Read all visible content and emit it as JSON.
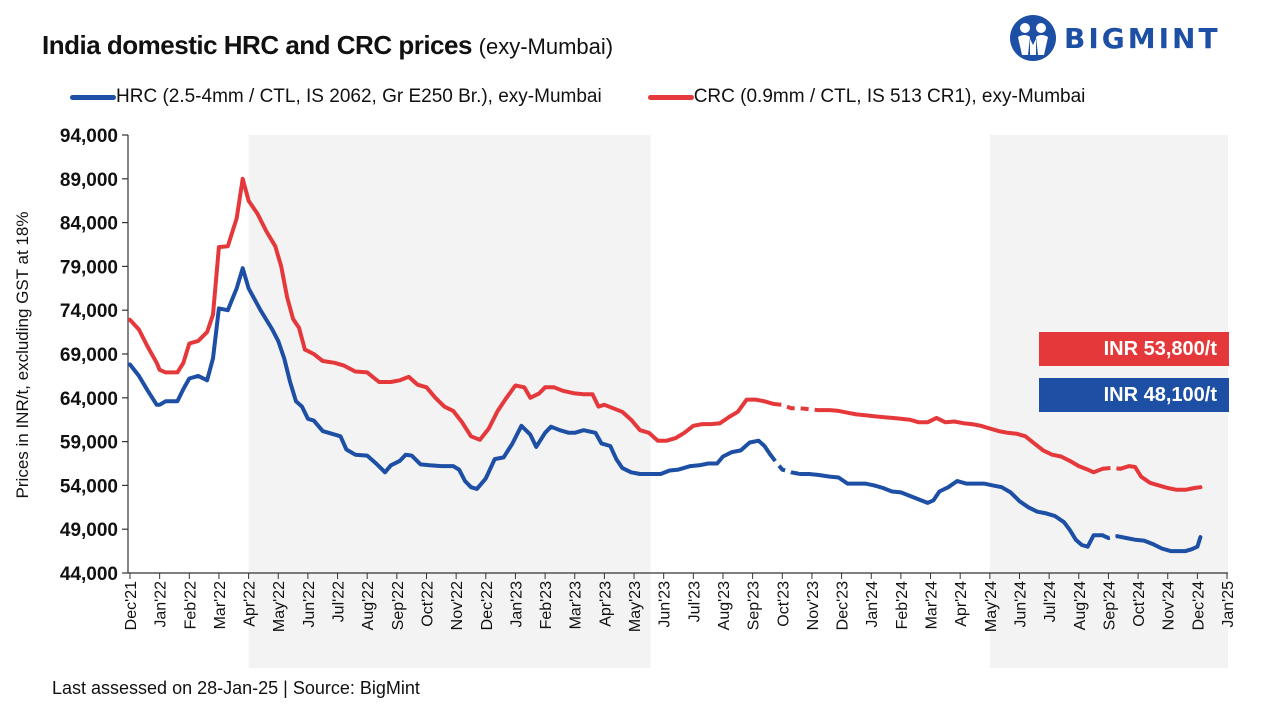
{
  "header": {
    "title": "India domestic HRC and CRC prices",
    "subtitle": "(exy-Mumbai)",
    "brand": "BIGMINT",
    "logo_icon": "bigmint-people-logo"
  },
  "footer": {
    "text": "Last assessed on 28-Jan-25  |  Source: BigMint"
  },
  "badges": {
    "crc": "INR 53,800/t",
    "hrc": "INR 48,100/t"
  },
  "colors": {
    "hrc": "#1d4fa5",
    "crc": "#e5383b",
    "shade": "#f3f3f3",
    "badge_crc": "#e5383b",
    "badge_hrc": "#1d4fa5"
  },
  "chart_data": {
    "type": "line",
    "title": "India domestic HRC and CRC prices (exy-Mumbai)",
    "ylabel": "Prices in INR/t, excluding GST at 18%",
    "xlabel": "",
    "ylim": [
      44000,
      94000
    ],
    "yticks": [
      "94,000",
      "89,000",
      "84,000",
      "79,000",
      "74,000",
      "69,000",
      "64,000",
      "59,000",
      "54,000",
      "49,000",
      "44,000"
    ],
    "xticks": [
      "Dec'21",
      "Jan'22",
      "Feb'22",
      "Mar'22",
      "Apr'22",
      "May'22",
      "Jun'22",
      "Jul'22",
      "Aug'22",
      "Sep'22",
      "Oct'22",
      "Nov'22",
      "Dec'22",
      "Jan'23",
      "Feb'23",
      "Mar'23",
      "Apr'23",
      "May'23",
      "Jun'23",
      "Jul'23",
      "Aug'23",
      "Sep'23",
      "Oct'23",
      "Nov'23",
      "Dec'23",
      "Jan'24",
      "Feb'24",
      "Mar'24",
      "Apr'24",
      "May'24",
      "Jun'24",
      "Jul'24",
      "Aug'24",
      "Sep'24",
      "Oct'24",
      "Nov'24",
      "Dec'24",
      "Jan'25"
    ],
    "legend_position": "top",
    "grid": false,
    "shaded_ranges": [
      [
        "Apr'22",
        "May'23"
      ],
      [
        "May'24",
        "Jan'25"
      ]
    ],
    "series": [
      {
        "name": "HRC (2.5-4mm / CTL, IS 2062, Gr E250 Br.), exy-Mumbai",
        "color": "#1d4fa5",
        "points": [
          [
            0,
            67800
          ],
          [
            0.3,
            66500
          ],
          [
            0.6,
            64800
          ],
          [
            0.9,
            63200
          ],
          [
            1.0,
            63200
          ],
          [
            1.2,
            63600
          ],
          [
            1.6,
            63600
          ],
          [
            1.8,
            65000
          ],
          [
            2.0,
            66200
          ],
          [
            2.3,
            66500
          ],
          [
            2.6,
            66000
          ],
          [
            2.8,
            68500
          ],
          [
            3.0,
            74200
          ],
          [
            3.3,
            74000
          ],
          [
            3.6,
            76500
          ],
          [
            3.8,
            78800
          ],
          [
            4.0,
            76500
          ],
          [
            4.4,
            74000
          ],
          [
            4.8,
            71800
          ],
          [
            5.0,
            70500
          ],
          [
            5.2,
            68500
          ],
          [
            5.4,
            65800
          ],
          [
            5.6,
            63600
          ],
          [
            5.8,
            63000
          ],
          [
            6.0,
            61600
          ],
          [
            6.2,
            61400
          ],
          [
            6.5,
            60200
          ],
          [
            6.9,
            59800
          ],
          [
            7.1,
            59600
          ],
          [
            7.3,
            58100
          ],
          [
            7.6,
            57500
          ],
          [
            8.0,
            57400
          ],
          [
            8.3,
            56500
          ],
          [
            8.6,
            55500
          ],
          [
            8.8,
            56300
          ],
          [
            9.1,
            56800
          ],
          [
            9.3,
            57500
          ],
          [
            9.5,
            57400
          ],
          [
            9.8,
            56400
          ],
          [
            10.1,
            56300
          ],
          [
            10.5,
            56200
          ],
          [
            10.9,
            56200
          ],
          [
            11.1,
            55800
          ],
          [
            11.3,
            54500
          ],
          [
            11.5,
            53800
          ],
          [
            11.7,
            53600
          ],
          [
            12.0,
            54800
          ],
          [
            12.3,
            57000
          ],
          [
            12.6,
            57200
          ],
          [
            12.9,
            58800
          ],
          [
            13.2,
            60800
          ],
          [
            13.5,
            59800
          ],
          [
            13.7,
            58400
          ],
          [
            14.0,
            60000
          ],
          [
            14.2,
            60700
          ],
          [
            14.5,
            60300
          ],
          [
            14.8,
            60000
          ],
          [
            15.0,
            60000
          ],
          [
            15.3,
            60300
          ],
          [
            15.7,
            60000
          ],
          [
            15.9,
            58800
          ],
          [
            16.2,
            58500
          ],
          [
            16.4,
            57000
          ],
          [
            16.6,
            56000
          ],
          [
            16.9,
            55500
          ],
          [
            17.2,
            55300
          ],
          [
            17.6,
            55300
          ],
          [
            17.9,
            55300
          ],
          [
            18.2,
            55700
          ],
          [
            18.5,
            55800
          ],
          [
            18.9,
            56200
          ],
          [
            19.2,
            56300
          ],
          [
            19.5,
            56500
          ],
          [
            19.8,
            56500
          ],
          [
            20.0,
            57300
          ],
          [
            20.3,
            57800
          ],
          [
            20.6,
            58000
          ],
          [
            20.9,
            58900
          ],
          [
            21.2,
            59100
          ],
          [
            21.4,
            58500
          ],
          [
            21.6,
            57500
          ],
          [
            21.8,
            56600
          ],
          [
            22.0,
            55800
          ],
          [
            22.3,
            55500
          ],
          [
            22.6,
            55300
          ],
          [
            22.9,
            55300
          ],
          [
            23.2,
            55200
          ],
          [
            23.6,
            55000
          ],
          [
            23.9,
            54900
          ],
          [
            24.2,
            54200
          ],
          [
            24.5,
            54200
          ],
          [
            24.8,
            54200
          ],
          [
            25.1,
            54000
          ],
          [
            25.4,
            53700
          ],
          [
            25.7,
            53300
          ],
          [
            26.0,
            53200
          ],
          [
            26.3,
            52800
          ],
          [
            26.6,
            52400
          ],
          [
            26.9,
            52000
          ],
          [
            27.1,
            52300
          ],
          [
            27.3,
            53300
          ],
          [
            27.6,
            53800
          ],
          [
            27.9,
            54500
          ],
          [
            28.2,
            54200
          ],
          [
            28.5,
            54200
          ],
          [
            28.8,
            54200
          ],
          [
            29.1,
            54000
          ],
          [
            29.4,
            53800
          ],
          [
            29.7,
            53200
          ],
          [
            30.0,
            52200
          ],
          [
            30.3,
            51500
          ],
          [
            30.6,
            51000
          ],
          [
            30.9,
            50800
          ],
          [
            31.2,
            50500
          ],
          [
            31.5,
            49800
          ],
          [
            31.7,
            48900
          ],
          [
            31.9,
            47800
          ],
          [
            32.1,
            47200
          ],
          [
            32.3,
            47000
          ],
          [
            32.5,
            48300
          ],
          [
            32.8,
            48300
          ],
          [
            33.0,
            48000
          ],
          [
            33.3,
            48200
          ],
          [
            33.6,
            48000
          ],
          [
            33.9,
            47800
          ],
          [
            34.2,
            47700
          ],
          [
            34.5,
            47300
          ],
          [
            34.8,
            46800
          ],
          [
            35.1,
            46500
          ],
          [
            35.3,
            46500
          ],
          [
            35.6,
            46500
          ],
          [
            35.8,
            46700
          ],
          [
            36.0,
            47000
          ],
          [
            36.1,
            48100
          ]
        ]
      },
      {
        "name": "CRC (0.9mm / CTL, IS 513 CR1), exy-Mumbai",
        "color": "#e5383b",
        "points": [
          [
            0,
            72900
          ],
          [
            0.3,
            71800
          ],
          [
            0.6,
            69800
          ],
          [
            0.9,
            68000
          ],
          [
            1.0,
            67200
          ],
          [
            1.2,
            66900
          ],
          [
            1.6,
            66900
          ],
          [
            1.8,
            68000
          ],
          [
            2.0,
            70200
          ],
          [
            2.3,
            70500
          ],
          [
            2.6,
            71500
          ],
          [
            2.8,
            73500
          ],
          [
            3.0,
            81200
          ],
          [
            3.3,
            81300
          ],
          [
            3.6,
            84500
          ],
          [
            3.8,
            89000
          ],
          [
            4.0,
            86500
          ],
          [
            4.3,
            85000
          ],
          [
            4.6,
            83000
          ],
          [
            4.9,
            81300
          ],
          [
            5.1,
            79000
          ],
          [
            5.3,
            75500
          ],
          [
            5.5,
            73000
          ],
          [
            5.7,
            72000
          ],
          [
            5.9,
            69500
          ],
          [
            6.2,
            69000
          ],
          [
            6.5,
            68200
          ],
          [
            6.9,
            68000
          ],
          [
            7.2,
            67700
          ],
          [
            7.6,
            67000
          ],
          [
            8.0,
            66900
          ],
          [
            8.4,
            65800
          ],
          [
            8.8,
            65800
          ],
          [
            9.1,
            66000
          ],
          [
            9.4,
            66400
          ],
          [
            9.7,
            65500
          ],
          [
            10.0,
            65200
          ],
          [
            10.3,
            64000
          ],
          [
            10.6,
            63000
          ],
          [
            10.9,
            62500
          ],
          [
            11.2,
            61200
          ],
          [
            11.5,
            59600
          ],
          [
            11.8,
            59200
          ],
          [
            12.1,
            60500
          ],
          [
            12.4,
            62500
          ],
          [
            12.7,
            64000
          ],
          [
            13.0,
            65400
          ],
          [
            13.3,
            65200
          ],
          [
            13.5,
            64000
          ],
          [
            13.8,
            64500
          ],
          [
            14.0,
            65200
          ],
          [
            14.3,
            65200
          ],
          [
            14.6,
            64800
          ],
          [
            15.0,
            64500
          ],
          [
            15.3,
            64400
          ],
          [
            15.6,
            64400
          ],
          [
            15.8,
            63000
          ],
          [
            16.0,
            63200
          ],
          [
            16.3,
            62800
          ],
          [
            16.6,
            62400
          ],
          [
            16.9,
            61500
          ],
          [
            17.2,
            60300
          ],
          [
            17.5,
            60000
          ],
          [
            17.8,
            59100
          ],
          [
            18.1,
            59100
          ],
          [
            18.4,
            59400
          ],
          [
            18.7,
            60000
          ],
          [
            19.0,
            60800
          ],
          [
            19.3,
            61000
          ],
          [
            19.6,
            61000
          ],
          [
            19.9,
            61100
          ],
          [
            20.2,
            61800
          ],
          [
            20.5,
            62400
          ],
          [
            20.8,
            63800
          ],
          [
            21.1,
            63800
          ],
          [
            21.4,
            63600
          ],
          [
            21.7,
            63300
          ],
          [
            22.0,
            63200
          ],
          [
            22.3,
            62800
          ],
          [
            22.6,
            62800
          ],
          [
            22.9,
            62700
          ],
          [
            23.2,
            62600
          ],
          [
            23.6,
            62600
          ],
          [
            23.9,
            62500
          ],
          [
            24.2,
            62300
          ],
          [
            24.5,
            62100
          ],
          [
            24.8,
            62000
          ],
          [
            25.1,
            61900
          ],
          [
            25.4,
            61800
          ],
          [
            25.7,
            61700
          ],
          [
            26.0,
            61600
          ],
          [
            26.3,
            61500
          ],
          [
            26.6,
            61200
          ],
          [
            26.9,
            61200
          ],
          [
            27.2,
            61700
          ],
          [
            27.5,
            61200
          ],
          [
            27.8,
            61300
          ],
          [
            28.1,
            61100
          ],
          [
            28.4,
            61000
          ],
          [
            28.7,
            60800
          ],
          [
            29.0,
            60500
          ],
          [
            29.3,
            60200
          ],
          [
            29.6,
            60000
          ],
          [
            29.9,
            59900
          ],
          [
            30.2,
            59600
          ],
          [
            30.5,
            58800
          ],
          [
            30.8,
            58000
          ],
          [
            31.1,
            57500
          ],
          [
            31.4,
            57300
          ],
          [
            31.7,
            56800
          ],
          [
            32.0,
            56200
          ],
          [
            32.3,
            55800
          ],
          [
            32.5,
            55500
          ],
          [
            32.8,
            55900
          ],
          [
            33.1,
            56000
          ],
          [
            33.4,
            55900
          ],
          [
            33.7,
            56200
          ],
          [
            33.9,
            56100
          ],
          [
            34.1,
            55000
          ],
          [
            34.4,
            54300
          ],
          [
            34.7,
            54000
          ],
          [
            35.0,
            53700
          ],
          [
            35.3,
            53500
          ],
          [
            35.6,
            53500
          ],
          [
            35.9,
            53700
          ],
          [
            36.1,
            53800
          ]
        ]
      }
    ],
    "dashed_segments": {
      "hrc": [
        [
          21.6,
          22.5
        ],
        [
          32.9,
          33.3
        ]
      ],
      "crc": [
        [
          21.8,
          23.0
        ],
        [
          32.9,
          33.3
        ]
      ]
    },
    "end_labels": [
      "INR 53,800/t",
      "INR 48,100/t"
    ]
  }
}
